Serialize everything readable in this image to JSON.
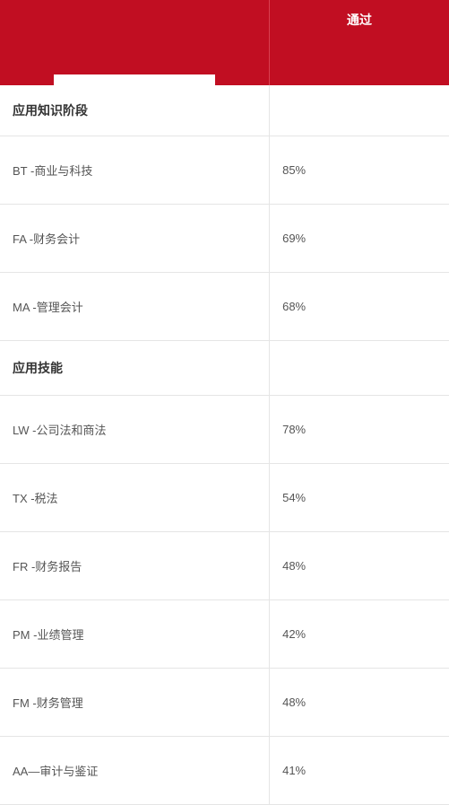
{
  "table": {
    "header": {
      "pass_label": "通过"
    },
    "columns": [
      "label",
      "value"
    ],
    "column_widths": [
      "60%",
      "40%"
    ],
    "header_bg": "#c10e22",
    "header_text_color": "#ffffff",
    "border_color": "#e5e5e5",
    "text_color": "#555555",
    "section_text_color": "#333333",
    "rows": [
      {
        "type": "section",
        "label": "应用知识阶段"
      },
      {
        "type": "data",
        "label": "BT -商业与科技",
        "value": "85%"
      },
      {
        "type": "data",
        "label": "FA -财务会计",
        "value": "69%"
      },
      {
        "type": "data",
        "label": "MA -管理会计",
        "value": "68%"
      },
      {
        "type": "section",
        "label": "应用技能"
      },
      {
        "type": "data",
        "label": "LW -公司法和商法",
        "value": "78%"
      },
      {
        "type": "data",
        "label": "TX -税法",
        "value": "54%"
      },
      {
        "type": "data",
        "label": "FR -财务报告",
        "value": "48%"
      },
      {
        "type": "data",
        "label": "PM -业绩管理",
        "value": "42%"
      },
      {
        "type": "data",
        "label": "FM -财务管理",
        "value": "48%"
      },
      {
        "type": "data",
        "label": "AA—审计与鉴证",
        "value": "41%"
      }
    ]
  }
}
